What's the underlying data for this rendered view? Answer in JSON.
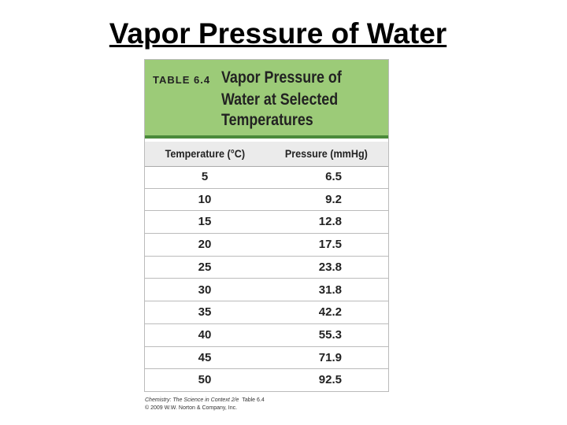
{
  "title": "Vapor Pressure of Water",
  "table": {
    "label": "TABLE 6.4",
    "caption_lines": [
      "Vapor Pressure of",
      "Water at Selected",
      "Temperatures"
    ],
    "columns": [
      "Temperature (°C)",
      "Pressure (mmHg)"
    ],
    "rows": [
      [
        "5",
        "6.5"
      ],
      [
        "10",
        "9.2"
      ],
      [
        "15",
        "12.8"
      ],
      [
        "20",
        "17.5"
      ],
      [
        "25",
        "23.8"
      ],
      [
        "30",
        "31.8"
      ],
      [
        "35",
        "42.2"
      ],
      [
        "40",
        "55.3"
      ],
      [
        "45",
        "71.9"
      ],
      [
        "50",
        "92.5"
      ]
    ],
    "source": {
      "book": "Chemistry: The Science in Context",
      "edition": "2/e",
      "ref": "Table 6.4",
      "copyright": "© 2009 W.W. Norton & Company, Inc."
    }
  }
}
